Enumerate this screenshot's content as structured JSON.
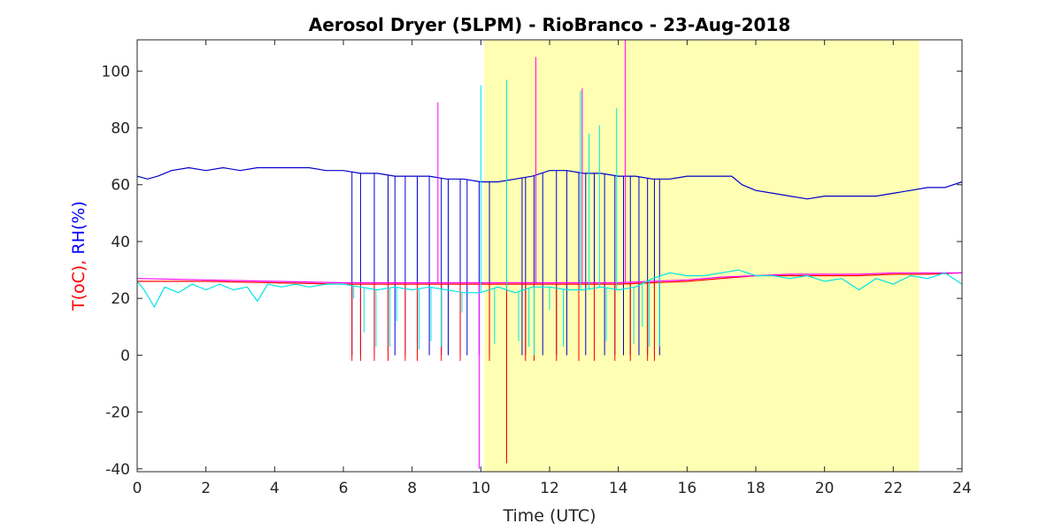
{
  "chart_data": {
    "type": "line",
    "title": "Aerosol Dryer (5LPM) - RioBranco - 23-Aug-2018",
    "xlabel": "Time (UTC)",
    "ylabel_parts": [
      {
        "text": "T(oC),",
        "color": "#ff0000"
      },
      {
        "text": " RH(%)",
        "color": "#0000ff"
      }
    ],
    "xlim": [
      0,
      24
    ],
    "ylim": [
      -41,
      111
    ],
    "xticks": [
      0,
      2,
      4,
      6,
      8,
      10,
      12,
      14,
      16,
      18,
      20,
      22,
      24
    ],
    "yticks": [
      -40,
      -20,
      0,
      20,
      40,
      60,
      80,
      100
    ],
    "grid": false,
    "daytime_shading": {
      "x_start": 10.1,
      "x_end": 22.75,
      "color": "#ffffb3"
    },
    "series": [
      {
        "color": "#0000cc",
        "x": [
          0,
          0.3,
          0.6,
          1.0,
          1.5,
          2.0,
          2.5,
          3.0,
          3.5,
          4.0,
          4.5,
          5.0,
          5.5,
          6.0,
          6.5,
          7.0,
          7.5,
          8.0,
          8.5,
          9.0,
          9.5,
          10.0,
          10.5,
          11.0,
          11.5,
          12.0,
          12.5,
          13.0,
          13.5,
          14.0,
          14.5,
          15.0,
          15.5,
          16.0,
          16.5,
          17.0,
          17.3,
          17.6,
          18.0,
          18.5,
          19.0,
          19.5,
          20.0,
          20.5,
          21.0,
          21.5,
          22.0,
          22.5,
          23.0,
          23.5,
          24.0
        ],
        "y": [
          63,
          62,
          63,
          65,
          66,
          65,
          66,
          65,
          66,
          66,
          66,
          66,
          65,
          65,
          64,
          64,
          63,
          63,
          63,
          62,
          62,
          61,
          61,
          62,
          63,
          65,
          65,
          64,
          64,
          63,
          63,
          62,
          62,
          63,
          63,
          63,
          63,
          60,
          58,
          57,
          56,
          55,
          56,
          56,
          56,
          56,
          57,
          58,
          59,
          59,
          61
        ],
        "dropouts": [
          [
            6.25,
            0
          ],
          [
            6.5,
            0
          ],
          [
            6.9,
            0
          ],
          [
            7.3,
            0
          ],
          [
            7.5,
            0
          ],
          [
            7.8,
            0
          ],
          [
            8.15,
            0
          ],
          [
            8.5,
            0
          ],
          [
            8.85,
            0
          ],
          [
            9.05,
            0
          ],
          [
            9.4,
            0
          ],
          [
            9.6,
            0
          ],
          [
            9.95,
            0
          ],
          [
            10.25,
            0
          ],
          [
            10.75,
            -38
          ],
          [
            11.2,
            0
          ],
          [
            11.3,
            0
          ],
          [
            11.55,
            0
          ],
          [
            11.8,
            0
          ],
          [
            12.2,
            0
          ],
          [
            12.5,
            0
          ],
          [
            12.85,
            0
          ],
          [
            13.05,
            0
          ],
          [
            13.3,
            0
          ],
          [
            13.6,
            0
          ],
          [
            13.9,
            0
          ],
          [
            14.15,
            0
          ],
          [
            14.35,
            0
          ],
          [
            14.6,
            0
          ],
          [
            14.85,
            0
          ],
          [
            15.05,
            0
          ],
          [
            15.2,
            0
          ]
        ]
      },
      {
        "color": "#ff0000",
        "x": [
          0,
          2,
          4,
          6,
          8,
          10,
          12,
          14,
          15,
          16,
          17,
          18,
          19,
          20,
          21,
          22,
          23,
          24
        ],
        "y": [
          26,
          26,
          25.5,
          25,
          25,
          25,
          25,
          25,
          25.5,
          26,
          27,
          28,
          28,
          28,
          28,
          28.5,
          28.5,
          29
        ],
        "dropouts": [
          [
            6.25,
            -2
          ],
          [
            6.5,
            -2
          ],
          [
            6.9,
            -2
          ],
          [
            7.3,
            -2
          ],
          [
            7.8,
            -2
          ],
          [
            8.15,
            -2
          ],
          [
            8.85,
            -2
          ],
          [
            9.4,
            -2
          ],
          [
            10.25,
            -2
          ],
          [
            10.75,
            -38
          ],
          [
            11.3,
            -2
          ],
          [
            11.55,
            -2
          ],
          [
            12.2,
            -2
          ],
          [
            12.85,
            -2
          ],
          [
            13.3,
            -2
          ],
          [
            13.9,
            -2
          ],
          [
            14.35,
            -2
          ],
          [
            14.85,
            -2
          ],
          [
            15.05,
            -2
          ]
        ]
      },
      {
        "color": "#ff00ff",
        "x": [
          0,
          2,
          4,
          6,
          8,
          10,
          12,
          14,
          15,
          16,
          17,
          18,
          19,
          20,
          21,
          22,
          23,
          24
        ],
        "y": [
          27,
          26.5,
          26,
          25.5,
          25.5,
          25.5,
          25.5,
          25.5,
          26,
          26.5,
          27.5,
          28,
          28.5,
          28.5,
          28.5,
          29,
          29,
          29
        ],
        "dropouts": [
          [
            8.75,
            89
          ],
          [
            9.95,
            -40
          ],
          [
            11.6,
            105
          ],
          [
            12.95,
            94
          ],
          [
            14.2,
            111
          ]
        ]
      },
      {
        "color": "#00e5e5",
        "x": [
          0,
          0.2,
          0.5,
          0.8,
          1.2,
          1.6,
          2.0,
          2.4,
          2.8,
          3.2,
          3.5,
          3.8,
          4.2,
          4.6,
          5.0,
          5.5,
          6.0,
          6.5,
          7.0,
          7.5,
          8.0,
          8.5,
          9.0,
          9.5,
          10.0,
          10.5,
          11.0,
          11.5,
          12.0,
          12.5,
          13.0,
          13.5,
          14.0,
          14.5,
          15.0,
          15.5,
          16.0,
          16.5,
          17.0,
          17.5,
          18.0,
          18.5,
          19.0,
          19.5,
          20.0,
          20.5,
          21.0,
          21.5,
          22.0,
          22.5,
          23.0,
          23.5,
          24.0
        ],
        "y": [
          26,
          23,
          17,
          24,
          22,
          25,
          23,
          25,
          23,
          24,
          19,
          25,
          24,
          25,
          24,
          25,
          25,
          24,
          23,
          24,
          23,
          24,
          23,
          22,
          22,
          24,
          22,
          24,
          24,
          23,
          23,
          24,
          23,
          24,
          27,
          29,
          28,
          28,
          29,
          30,
          28,
          28,
          27,
          28,
          26,
          27,
          23,
          27,
          25,
          28,
          27,
          29,
          25
        ],
        "dropouts": [
          [
            6.3,
            20
          ],
          [
            6.6,
            8
          ],
          [
            6.95,
            3
          ],
          [
            7.35,
            3
          ],
          [
            7.55,
            12
          ],
          [
            8.2,
            2
          ],
          [
            8.55,
            5
          ],
          [
            8.85,
            3
          ],
          [
            9.45,
            15
          ],
          [
            10.0,
            95
          ],
          [
            10.4,
            4
          ],
          [
            10.75,
            97
          ],
          [
            11.1,
            5
          ],
          [
            11.4,
            3
          ],
          [
            11.55,
            0
          ],
          [
            12.0,
            16
          ],
          [
            12.4,
            3
          ],
          [
            12.9,
            93
          ],
          [
            13.15,
            78
          ],
          [
            13.45,
            81
          ],
          [
            13.65,
            5
          ],
          [
            13.95,
            87
          ],
          [
            14.45,
            4
          ],
          [
            14.7,
            10
          ],
          [
            14.9,
            3
          ],
          [
            15.2,
            3
          ]
        ]
      }
    ]
  }
}
